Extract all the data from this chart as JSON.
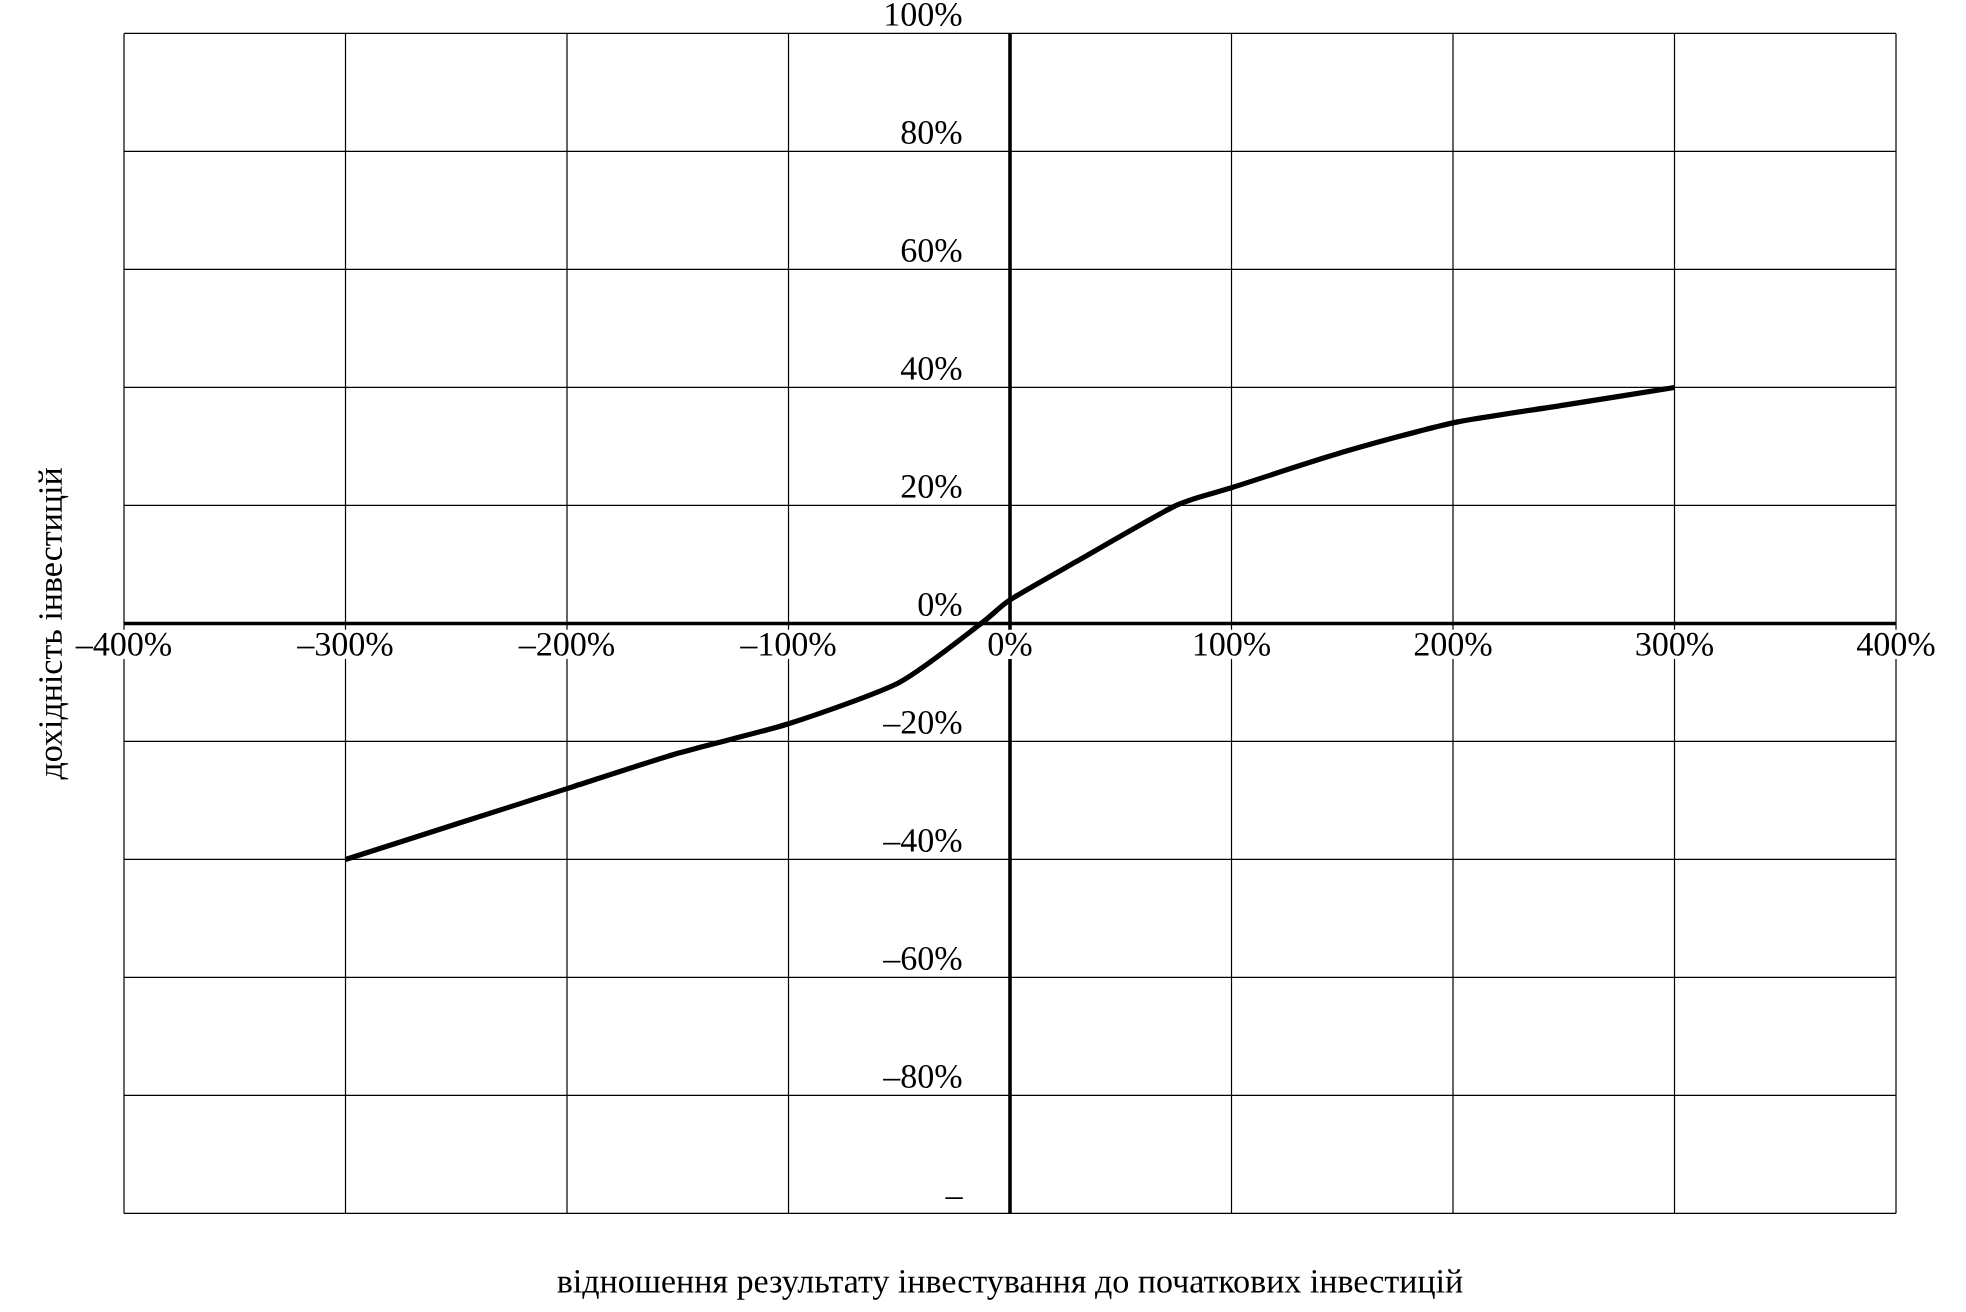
{
  "chart_data": {
    "type": "line",
    "xlabel": "відношення результату інвестування до початкових інвестицій",
    "ylabel": "дохідність інвестицій",
    "x": [
      -300,
      -250,
      -200,
      -150,
      -100,
      -50,
      -13,
      0,
      30,
      75,
      100,
      150,
      200,
      250,
      300
    ],
    "values": [
      -40,
      -34,
      -28,
      -22,
      -17,
      -10,
      0,
      4,
      10.5,
      20,
      23,
      29,
      34,
      37,
      40
    ],
    "color": "#000000",
    "xlim": [
      -400,
      400
    ],
    "ylim": [
      -100,
      100
    ],
    "xticks": [
      {
        "value": -400,
        "label": "–400%"
      },
      {
        "value": -300,
        "label": "–300%"
      },
      {
        "value": -200,
        "label": "–200%"
      },
      {
        "value": -100,
        "label": "–100%"
      },
      {
        "value": 0,
        "label": "0%"
      },
      {
        "value": 100,
        "label": "100%"
      },
      {
        "value": 200,
        "label": "200%"
      },
      {
        "value": 300,
        "label": "300%"
      },
      {
        "value": 400,
        "label": "400%"
      }
    ],
    "yticks": [
      {
        "value": -100,
        "label": "–"
      },
      {
        "value": -80,
        "label": "–80%"
      },
      {
        "value": -60,
        "label": "–60%"
      },
      {
        "value": -40,
        "label": "–40%"
      },
      {
        "value": -20,
        "label": "–20%"
      },
      {
        "value": 0,
        "label": "0%"
      },
      {
        "value": 20,
        "label": "20%"
      },
      {
        "value": 40,
        "label": "40%"
      },
      {
        "value": 60,
        "label": "60%"
      },
      {
        "value": 80,
        "label": "80%"
      },
      {
        "value": 100,
        "label": "100%"
      }
    ],
    "grid": true
  }
}
